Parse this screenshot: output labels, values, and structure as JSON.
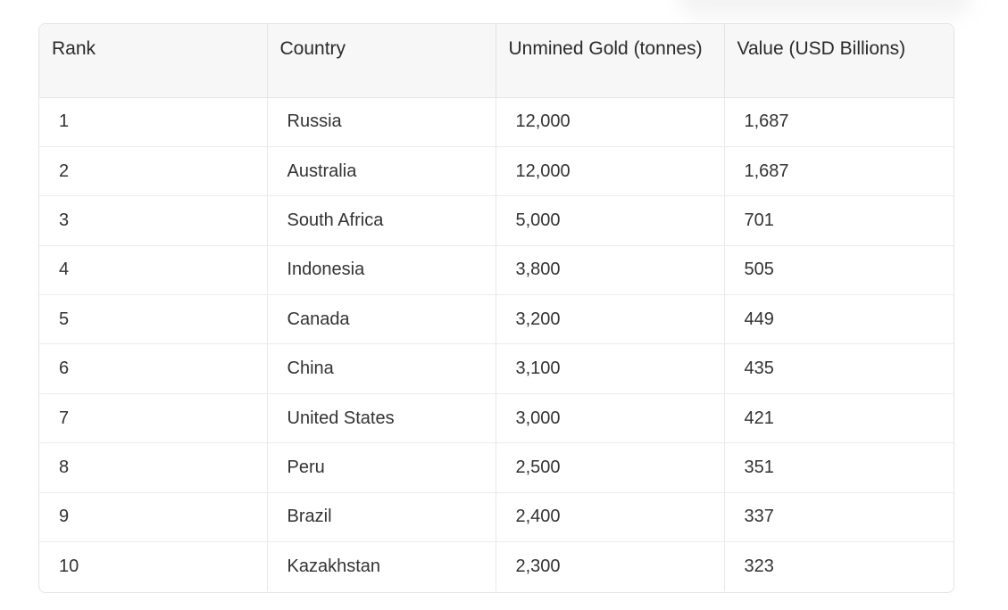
{
  "table": {
    "headers": [
      "Rank",
      "Country",
      "Unmined Gold (tonnes)",
      "Value (USD Billions)"
    ],
    "rows": [
      [
        "1",
        "Russia",
        "12,000",
        "1,687"
      ],
      [
        "2",
        "Australia",
        "12,000",
        "1,687"
      ],
      [
        "3",
        "South Africa",
        "5,000",
        "701"
      ],
      [
        "4",
        "Indonesia",
        "3,800",
        "505"
      ],
      [
        "5",
        "Canada",
        "3,200",
        "449"
      ],
      [
        "6",
        "China",
        "3,100",
        "435"
      ],
      [
        "7",
        "United States",
        "3,000",
        "421"
      ],
      [
        "8",
        "Peru",
        "2,500",
        "351"
      ],
      [
        "9",
        "Brazil",
        "2,400",
        "337"
      ],
      [
        "10",
        "Kazakhstan",
        "2,300",
        "323"
      ]
    ]
  }
}
